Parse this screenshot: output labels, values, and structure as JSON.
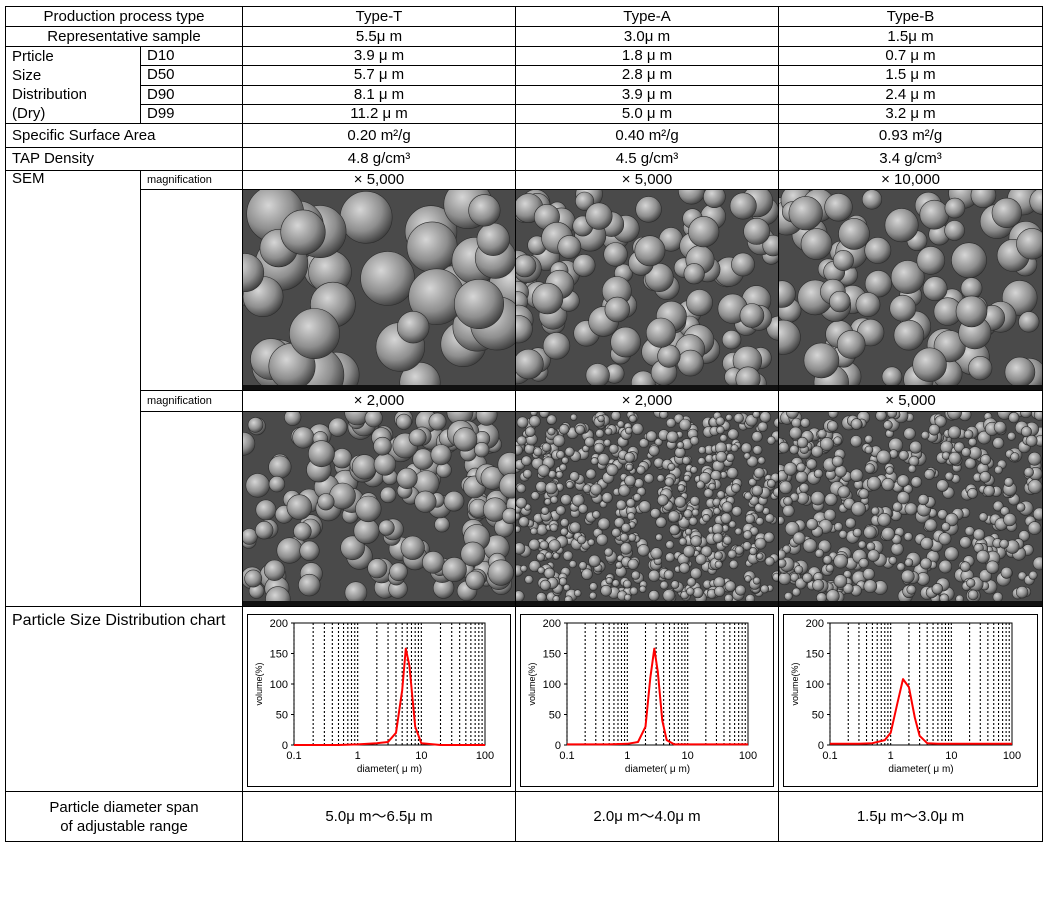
{
  "header": {
    "label": "Production process type",
    "columns": [
      "Type-T",
      "Type-A",
      "Type-B"
    ]
  },
  "sample": {
    "label": "Representative sample",
    "values": [
      "5.5μ m",
      "3.0μ m",
      "1.5μ m"
    ]
  },
  "psd": {
    "group_label": [
      "Prticle",
      "Size",
      "Distribution",
      "(Dry)"
    ],
    "rows": [
      {
        "label": "D10",
        "values": [
          "3.9  μ m",
          "1.8  μ m",
          "0.7  μ m"
        ]
      },
      {
        "label": "D50",
        "values": [
          "5.7  μ m",
          "2.8  μ m",
          "1.5  μ m"
        ]
      },
      {
        "label": "D90",
        "values": [
          "8.1  μ m",
          "3.9  μ m",
          "2.4  μ m"
        ]
      },
      {
        "label": "D99",
        "values": [
          "11.2  μ m",
          "5.0  μ m",
          "3.2  μ m"
        ]
      }
    ]
  },
  "ssa": {
    "label": "Specific Surface Area",
    "values": [
      "0.20 m²/g",
      "0.40 m²/g",
      "0.93 m²/g"
    ]
  },
  "tap": {
    "label": "TAP Density",
    "values": [
      "4.8 g/cm³",
      "4.5 g/cm³",
      "3.4 g/cm³"
    ]
  },
  "sem": {
    "label": "SEM",
    "mag_label": "magnification",
    "mag1": [
      "× 5,000",
      "× 5,000",
      "× 10,000"
    ],
    "mag2": [
      "× 2,000",
      "× 2,000",
      "× 5,000"
    ]
  },
  "chart_row_label": "Particle Size Distribution chart",
  "chart_data": [
    {
      "type": "line",
      "title": "",
      "xlabel": "diameter( μ m)",
      "ylabel": "volume(%)",
      "xscale": "log",
      "xlim": [
        0.1,
        100
      ],
      "ylim": [
        0,
        200
      ],
      "xticks": [
        "0.1",
        "1",
        "10",
        "100"
      ],
      "yticks": [
        "0",
        "50",
        "100",
        "150",
        "200"
      ],
      "grid": "dashed vertical",
      "color": "#ff0000",
      "series": [
        {
          "x": [
            0.1,
            0.5,
            1,
            2,
            3,
            4,
            5,
            5.7,
            6.5,
            8,
            10,
            20,
            100
          ],
          "y": [
            0,
            0,
            1,
            3,
            5,
            20,
            90,
            158,
            130,
            30,
            3,
            0,
            0
          ]
        }
      ]
    },
    {
      "type": "line",
      "title": "",
      "xlabel": "diameter( μ m)",
      "ylabel": "volume(%)",
      "xscale": "log",
      "xlim": [
        0.1,
        100
      ],
      "ylim": [
        0,
        200
      ],
      "xticks": [
        "0.1",
        "1",
        "10",
        "100"
      ],
      "yticks": [
        "0",
        "50",
        "100",
        "150",
        "200"
      ],
      "grid": "dashed vertical",
      "color": "#ff0000",
      "series": [
        {
          "x": [
            0.1,
            0.5,
            1,
            1.5,
            2,
            2.4,
            2.8,
            3.2,
            3.8,
            4.5,
            6,
            20,
            100
          ],
          "y": [
            1,
            1,
            2,
            5,
            30,
            110,
            158,
            120,
            40,
            8,
            1,
            1,
            1
          ]
        }
      ]
    },
    {
      "type": "line",
      "title": "",
      "xlabel": "diameter( μ m)",
      "ylabel": "volume(%)",
      "xscale": "log",
      "xlim": [
        0.1,
        100
      ],
      "ylim": [
        0,
        200
      ],
      "xticks": [
        "0.1",
        "1",
        "10",
        "100"
      ],
      "yticks": [
        "0",
        "50",
        "100",
        "150",
        "200"
      ],
      "grid": "dashed vertical",
      "color": "#ff0000",
      "series": [
        {
          "x": [
            0.1,
            0.3,
            0.5,
            0.8,
            1,
            1.3,
            1.6,
            2,
            2.5,
            3,
            4,
            6,
            20,
            100
          ],
          "y": [
            2,
            2,
            3,
            8,
            20,
            70,
            108,
            95,
            45,
            15,
            3,
            2,
            2,
            2
          ]
        }
      ]
    }
  ],
  "span": {
    "label_lines": [
      "Particle diameter span",
      "of adjustable range"
    ],
    "values": [
      "5.0μ m〜6.5μ m",
      "2.0μ m〜4.0μ m",
      "1.5μ m〜3.0μ m"
    ]
  }
}
